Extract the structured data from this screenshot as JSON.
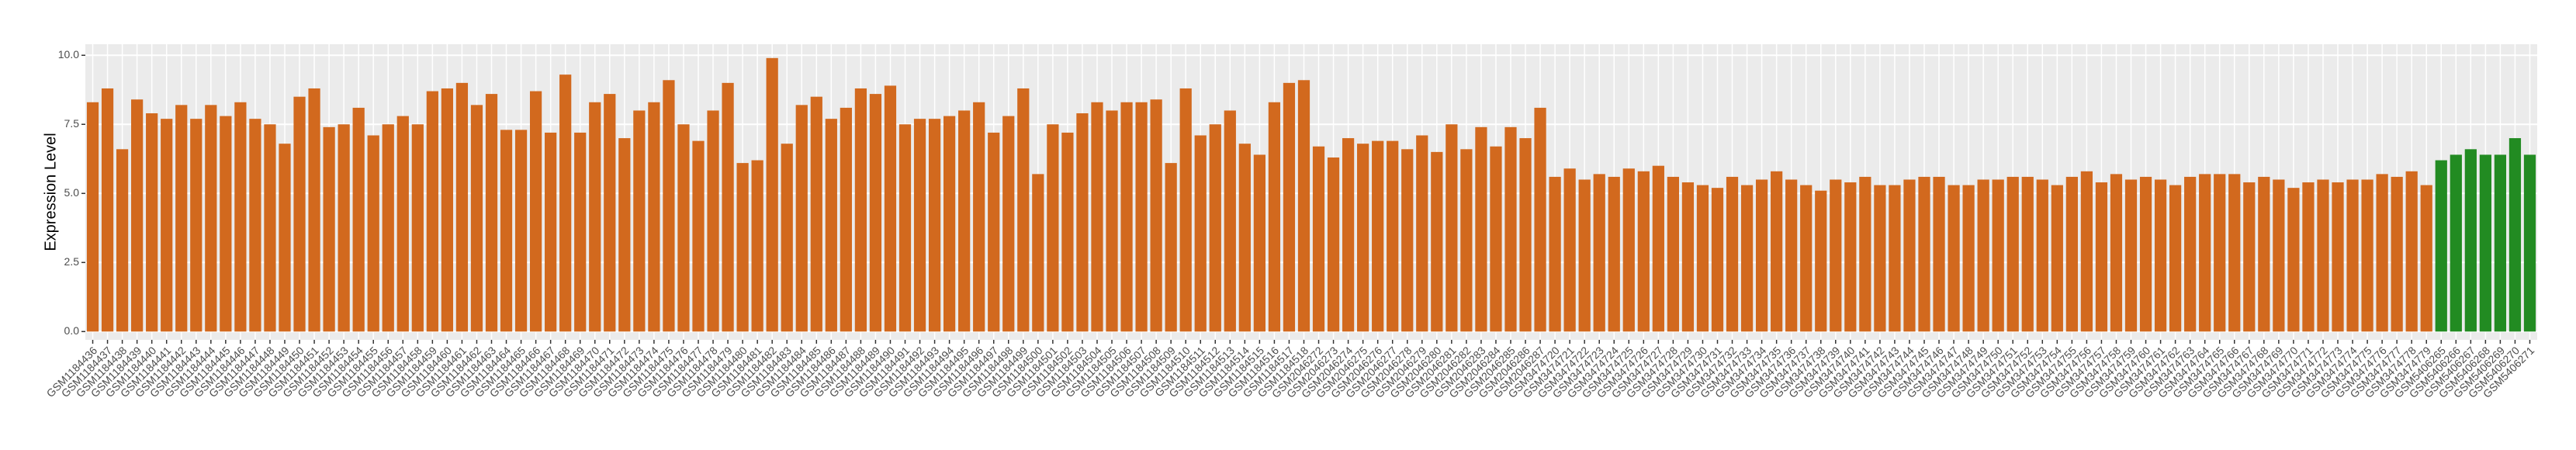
{
  "chart_data": {
    "type": "bar",
    "y_label": "Expression Level",
    "ylim": [
      -0.3,
      10.4
    ],
    "yticks": [
      {
        "value": 0,
        "label": "0.0"
      },
      {
        "value": 2.5,
        "label": "2.5"
      },
      {
        "value": 5,
        "label": "5.0"
      },
      {
        "value": 7.5,
        "label": "7.5"
      },
      {
        "value": 10,
        "label": "10.0"
      }
    ],
    "grid": true,
    "categories": [
      "GSM1184436",
      "GSM1184437",
      "GSM1184438",
      "GSM1184439",
      "GSM1184440",
      "GSM1184441",
      "GSM1184442",
      "GSM1184443",
      "GSM1184444",
      "GSM1184445",
      "GSM1184446",
      "GSM1184447",
      "GSM1184448",
      "GSM1184449",
      "GSM1184450",
      "GSM1184451",
      "GSM1184452",
      "GSM1184453",
      "GSM1184454",
      "GSM1184455",
      "GSM1184456",
      "GSM1184457",
      "GSM1184458",
      "GSM1184459",
      "GSM1184460",
      "GSM1184461",
      "GSM1184462",
      "GSM1184463",
      "GSM1184464",
      "GSM1184465",
      "GSM1184466",
      "GSM1184467",
      "GSM1184468",
      "GSM1184469",
      "GSM1184470",
      "GSM1184471",
      "GSM1184472",
      "GSM1184473",
      "GSM1184474",
      "GSM1184475",
      "GSM1184476",
      "GSM1184477",
      "GSM1184478",
      "GSM1184479",
      "GSM1184480",
      "GSM1184481",
      "GSM1184482",
      "GSM1184483",
      "GSM1184484",
      "GSM1184485",
      "GSM1184486",
      "GSM1184487",
      "GSM1184488",
      "GSM1184489",
      "GSM1184490",
      "GSM1184491",
      "GSM1184492",
      "GSM1184493",
      "GSM1184494",
      "GSM1184495",
      "GSM1184496",
      "GSM1184497",
      "GSM1184498",
      "GSM1184499",
      "GSM1184500",
      "GSM1184501",
      "GSM1184502",
      "GSM1184503",
      "GSM1184504",
      "GSM1184505",
      "GSM1184506",
      "GSM1184507",
      "GSM1184508",
      "GSM1184509",
      "GSM1184510",
      "GSM1184511",
      "GSM1184512",
      "GSM1184513",
      "GSM1184514",
      "GSM1184515",
      "GSM1184516",
      "GSM1184517",
      "GSM1184518",
      "GSM2046272",
      "GSM2046273",
      "GSM2046274",
      "GSM2046275",
      "GSM2046276",
      "GSM2046277",
      "GSM2046278",
      "GSM2046279",
      "GSM2046280",
      "GSM2046281",
      "GSM2046282",
      "GSM2046283",
      "GSM2046284",
      "GSM2046285",
      "GSM2046286",
      "GSM2046287",
      "GSM3474720",
      "GSM3474721",
      "GSM3474722",
      "GSM3474723",
      "GSM3474724",
      "GSM3474725",
      "GSM3474726",
      "GSM3474727",
      "GSM3474728",
      "GSM3474729",
      "GSM3474730",
      "GSM3474731",
      "GSM3474732",
      "GSM3474733",
      "GSM3474734",
      "GSM3474735",
      "GSM3474736",
      "GSM3474737",
      "GSM3474738",
      "GSM3474739",
      "GSM3474740",
      "GSM3474741",
      "GSM3474742",
      "GSM3474743",
      "GSM3474744",
      "GSM3474745",
      "GSM3474746",
      "GSM3474747",
      "GSM3474748",
      "GSM3474749",
      "GSM3474750",
      "GSM3474751",
      "GSM3474752",
      "GSM3474753",
      "GSM3474754",
      "GSM3474755",
      "GSM3474756",
      "GSM3474757",
      "GSM3474758",
      "GSM3474759",
      "GSM3474760",
      "GSM3474761",
      "GSM3474762",
      "GSM3474763",
      "GSM3474764",
      "GSM3474765",
      "GSM3474766",
      "GSM3474767",
      "GSM3474768",
      "GSM3474769",
      "GSM3474770",
      "GSM3474771",
      "GSM3474772",
      "GSM3474773",
      "GSM3474774",
      "GSM3474775",
      "GSM3474776",
      "GSM3474777",
      "GSM3474778",
      "GSM3474779",
      "GSM5406265",
      "GSM5406266",
      "GSM5406267",
      "GSM5406268",
      "GSM5406269",
      "GSM5406270",
      "GSM5406271"
    ],
    "values": [
      8.3,
      8.8,
      6.6,
      8.4,
      7.9,
      7.7,
      8.2,
      7.7,
      8.2,
      7.8,
      8.3,
      7.7,
      7.5,
      6.8,
      8.5,
      8.8,
      7.4,
      7.5,
      8.1,
      7.1,
      7.5,
      7.8,
      7.5,
      8.7,
      8.8,
      9.0,
      8.2,
      8.6,
      7.3,
      7.3,
      8.7,
      7.2,
      9.3,
      7.2,
      8.3,
      8.6,
      7.0,
      8.0,
      8.3,
      9.1,
      7.5,
      6.9,
      8.0,
      9.0,
      6.1,
      6.2,
      9.9,
      6.8,
      8.2,
      8.5,
      7.7,
      8.1,
      8.8,
      8.6,
      8.9,
      7.5,
      7.7,
      7.7,
      7.8,
      8.0,
      8.3,
      7.2,
      7.8,
      8.8,
      5.7,
      7.5,
      7.2,
      7.9,
      8.3,
      8.0,
      8.3,
      8.3,
      8.4,
      6.1,
      8.8,
      7.1,
      7.5,
      8.0,
      6.8,
      6.4,
      8.3,
      9.0,
      9.1,
      6.7,
      6.3,
      7.0,
      6.8,
      6.9,
      6.9,
      6.6,
      7.1,
      6.5,
      7.5,
      6.6,
      7.4,
      6.7,
      7.4,
      7.0,
      8.1,
      5.6,
      5.9,
      5.5,
      5.7,
      5.6,
      5.9,
      5.8,
      6.0,
      5.6,
      5.4,
      5.3,
      5.2,
      5.6,
      5.3,
      5.5,
      5.8,
      5.5,
      5.3,
      5.1,
      5.5,
      5.4,
      5.6,
      5.3,
      5.3,
      5.5,
      5.6,
      5.6,
      5.3,
      5.3,
      5.5,
      5.5,
      5.6,
      5.6,
      5.5,
      5.3,
      5.6,
      5.8,
      5.4,
      5.7,
      5.5,
      5.6,
      5.5,
      5.3,
      5.6,
      5.7,
      5.7,
      5.7,
      5.4,
      5.6,
      5.5,
      5.2,
      5.4,
      5.5,
      5.4,
      5.5,
      5.5,
      5.7,
      5.6,
      5.8,
      5.3,
      6.2,
      6.4,
      6.6,
      6.4,
      6.4,
      7.0,
      6.4
    ],
    "colors": [
      "#d2691e",
      "#d2691e",
      "#d2691e",
      "#d2691e",
      "#d2691e",
      "#d2691e",
      "#d2691e",
      "#d2691e",
      "#d2691e",
      "#d2691e",
      "#d2691e",
      "#d2691e",
      "#d2691e",
      "#d2691e",
      "#d2691e",
      "#d2691e",
      "#d2691e",
      "#d2691e",
      "#d2691e",
      "#d2691e",
      "#d2691e",
      "#d2691e",
      "#d2691e",
      "#d2691e",
      "#d2691e",
      "#d2691e",
      "#d2691e",
      "#d2691e",
      "#d2691e",
      "#d2691e",
      "#d2691e",
      "#d2691e",
      "#d2691e",
      "#d2691e",
      "#d2691e",
      "#d2691e",
      "#d2691e",
      "#d2691e",
      "#d2691e",
      "#d2691e",
      "#d2691e",
      "#d2691e",
      "#d2691e",
      "#d2691e",
      "#d2691e",
      "#d2691e",
      "#d2691e",
      "#d2691e",
      "#d2691e",
      "#d2691e",
      "#d2691e",
      "#d2691e",
      "#d2691e",
      "#d2691e",
      "#d2691e",
      "#d2691e",
      "#d2691e",
      "#d2691e",
      "#d2691e",
      "#d2691e",
      "#d2691e",
      "#d2691e",
      "#d2691e",
      "#d2691e",
      "#d2691e",
      "#d2691e",
      "#d2691e",
      "#d2691e",
      "#d2691e",
      "#d2691e",
      "#d2691e",
      "#d2691e",
      "#d2691e",
      "#d2691e",
      "#d2691e",
      "#d2691e",
      "#d2691e",
      "#d2691e",
      "#d2691e",
      "#d2691e",
      "#d2691e",
      "#d2691e",
      "#d2691e",
      "#d2691e",
      "#d2691e",
      "#d2691e",
      "#d2691e",
      "#d2691e",
      "#d2691e",
      "#d2691e",
      "#d2691e",
      "#d2691e",
      "#d2691e",
      "#d2691e",
      "#d2691e",
      "#d2691e",
      "#d2691e",
      "#d2691e",
      "#d2691e",
      "#d2691e",
      "#d2691e",
      "#d2691e",
      "#d2691e",
      "#d2691e",
      "#d2691e",
      "#d2691e",
      "#d2691e",
      "#d2691e",
      "#d2691e",
      "#d2691e",
      "#d2691e",
      "#d2691e",
      "#d2691e",
      "#d2691e",
      "#d2691e",
      "#d2691e",
      "#d2691e",
      "#d2691e",
      "#d2691e",
      "#d2691e",
      "#d2691e",
      "#d2691e",
      "#d2691e",
      "#d2691e",
      "#d2691e",
      "#d2691e",
      "#d2691e",
      "#d2691e",
      "#d2691e",
      "#d2691e",
      "#d2691e",
      "#d2691e",
      "#d2691e",
      "#d2691e",
      "#d2691e",
      "#d2691e",
      "#d2691e",
      "#d2691e",
      "#d2691e",
      "#d2691e",
      "#d2691e",
      "#d2691e",
      "#d2691e",
      "#d2691e",
      "#d2691e",
      "#d2691e",
      "#d2691e",
      "#d2691e",
      "#d2691e",
      "#d2691e",
      "#d2691e",
      "#d2691e",
      "#d2691e",
      "#d2691e",
      "#d2691e",
      "#d2691e",
      "#d2691e",
      "#d2691e",
      "#d2691e",
      "#228b22",
      "#228b22",
      "#228b22",
      "#228b22",
      "#228b22",
      "#228b22",
      "#228b22"
    ]
  }
}
